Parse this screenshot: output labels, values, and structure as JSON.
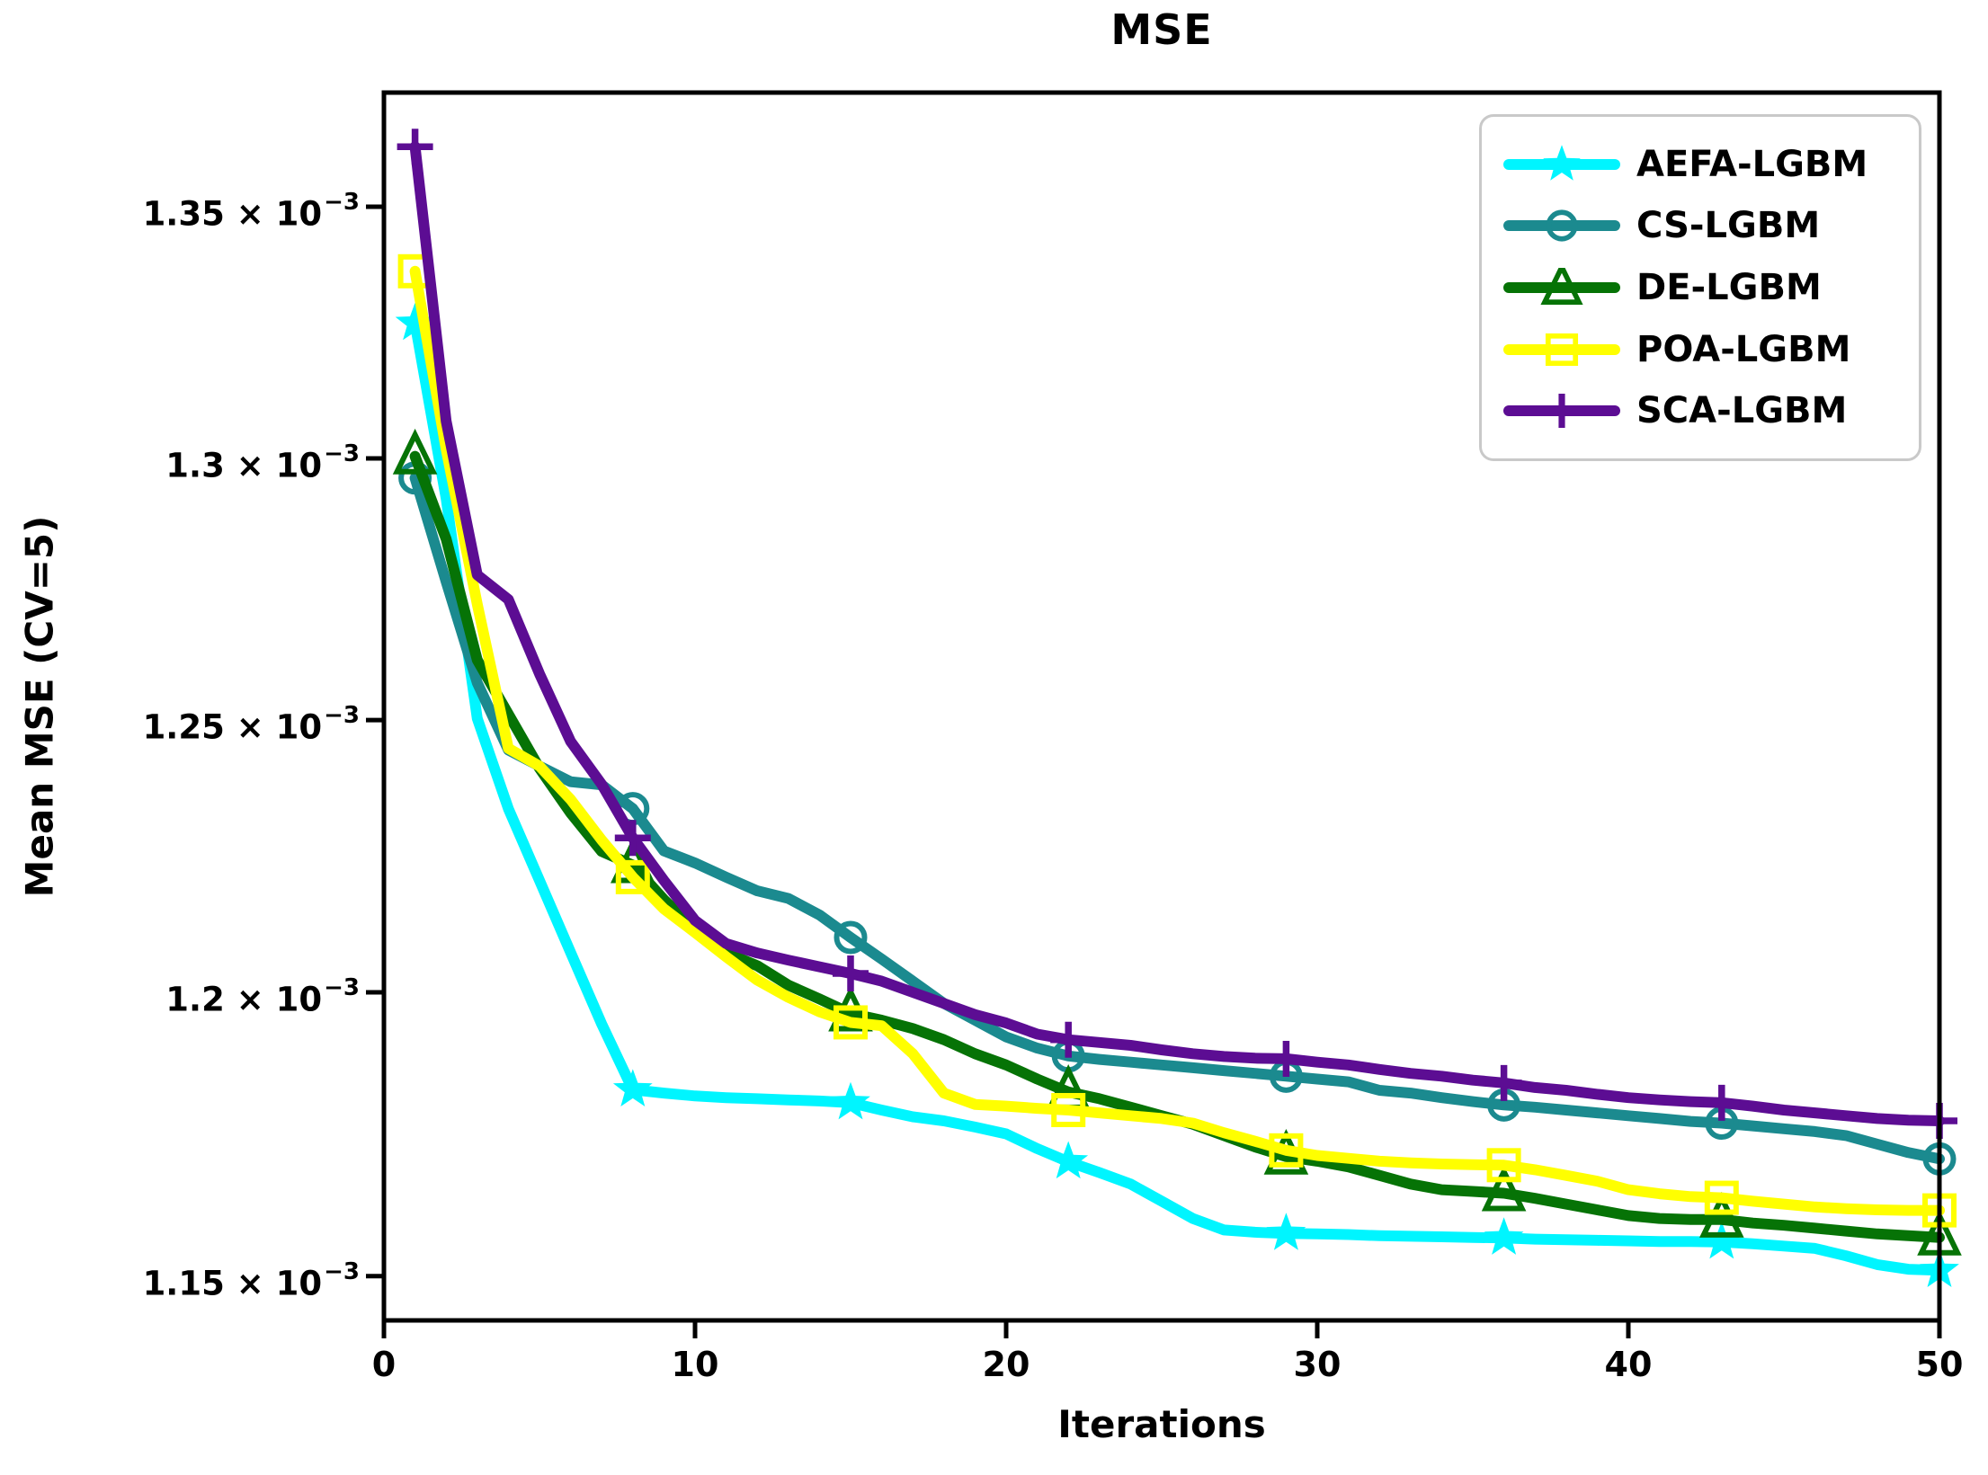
{
  "chart_data": {
    "type": "line",
    "title": "MSE",
    "xlabel": "Iterations",
    "ylabel": "Mean MSE (CV=5)",
    "yscale": "log",
    "y_unit": "×10⁻³",
    "xlim": [
      0,
      50
    ],
    "ylim": [
      1.1424,
      1.3733
    ],
    "x_start": 1,
    "markevery": 7,
    "grid": false,
    "legend_position": "upper right",
    "x_ticks": [
      {
        "label": "0",
        "value": 0
      },
      {
        "label": "10",
        "value": 10
      },
      {
        "label": "20",
        "value": 20
      },
      {
        "label": "30",
        "value": 30
      },
      {
        "label": "40",
        "value": 40
      },
      {
        "label": "50",
        "value": 50
      }
    ],
    "y_ticks": [
      {
        "base": "1.35 × 10",
        "sup": "−3",
        "value": 1.35
      },
      {
        "base": "1.3 × 10",
        "sup": "−3",
        "value": 1.3
      },
      {
        "base": "1.25 × 10",
        "sup": "−3",
        "value": 1.25
      },
      {
        "base": "1.2 × 10",
        "sup": "−3",
        "value": 1.2
      },
      {
        "base": "1.15 × 10",
        "sup": "−3",
        "value": 1.15
      }
    ],
    "series": [
      {
        "name": "AEFA-LGBM",
        "color": "#00f5ff",
        "marker": "star",
        "values": [
          1.3266,
          1.2922,
          1.2503,
          1.2335,
          1.2203,
          1.2072,
          1.1943,
          1.1826,
          1.182,
          1.1815,
          1.1812,
          1.181,
          1.1808,
          1.1806,
          1.1803,
          1.179,
          1.1778,
          1.1771,
          1.176,
          1.1748,
          1.1722,
          1.1699,
          1.168,
          1.166,
          1.163,
          1.16,
          1.158,
          1.1576,
          1.1574,
          1.1573,
          1.1572,
          1.157,
          1.1569,
          1.1568,
          1.1567,
          1.1566,
          1.1564,
          1.1563,
          1.1562,
          1.1561,
          1.156,
          1.156,
          1.1559,
          1.1556,
          1.1552,
          1.1548,
          1.1535,
          1.152,
          1.1512,
          1.151
        ]
      },
      {
        "name": "CS-LGBM",
        "color": "#1b8a8f",
        "marker": "circle",
        "values": [
          1.2962,
          1.2762,
          1.257,
          1.2444,
          1.2414,
          1.2385,
          1.2379,
          1.2335,
          1.2257,
          1.2235,
          1.2209,
          1.2184,
          1.217,
          1.214,
          1.2099,
          1.206,
          1.202,
          1.198,
          1.195,
          1.192,
          1.19,
          1.1886,
          1.188,
          1.1875,
          1.187,
          1.1865,
          1.186,
          1.1855,
          1.185,
          1.1845,
          1.184,
          1.1825,
          1.182,
          1.1812,
          1.1805,
          1.1799,
          1.1795,
          1.179,
          1.1785,
          1.178,
          1.1775,
          1.177,
          1.1767,
          1.1762,
          1.1757,
          1.1752,
          1.1745,
          1.173,
          1.1715,
          1.1704
        ]
      },
      {
        "name": "DE-LGBM",
        "color": "#067306",
        "marker": "triangle",
        "values": [
          1.3004,
          1.2844,
          1.2613,
          1.2511,
          1.241,
          1.2327,
          1.2256,
          1.2231,
          1.2168,
          1.2114,
          1.2071,
          1.2048,
          1.2013,
          1.1988,
          1.1962,
          1.195,
          1.1935,
          1.1915,
          1.189,
          1.187,
          1.1845,
          1.1822,
          1.181,
          1.1795,
          1.178,
          1.1765,
          1.1745,
          1.1725,
          1.1708,
          1.17,
          1.169,
          1.1675,
          1.166,
          1.165,
          1.1647,
          1.1644,
          1.1635,
          1.1625,
          1.1615,
          1.1605,
          1.16,
          1.1598,
          1.1598,
          1.1592,
          1.1588,
          1.1583,
          1.1578,
          1.1573,
          1.157,
          1.1567
        ]
      },
      {
        "name": "POA-LGBM",
        "color": "#ffff00",
        "marker": "square",
        "values": [
          1.337,
          1.3018,
          1.2719,
          1.2447,
          1.2414,
          1.2352,
          1.2277,
          1.2209,
          1.2151,
          1.2108,
          1.2064,
          1.2022,
          1.1991,
          1.1965,
          1.1946,
          1.194,
          1.189,
          1.182,
          1.18,
          1.1797,
          1.1793,
          1.179,
          1.1785,
          1.178,
          1.1775,
          1.1767,
          1.175,
          1.1735,
          1.1719,
          1.171,
          1.1705,
          1.17,
          1.1697,
          1.1695,
          1.1694,
          1.1693,
          1.1685,
          1.1675,
          1.1665,
          1.165,
          1.1643,
          1.1638,
          1.1636,
          1.163,
          1.1625,
          1.162,
          1.1617,
          1.1615,
          1.1614,
          1.1614
        ]
      },
      {
        "name": "SCA-LGBM",
        "color": "#5c0d93",
        "marker": "plus",
        "values": [
          1.3622,
          1.3073,
          1.2775,
          1.2728,
          1.2587,
          1.246,
          1.238,
          1.2281,
          1.2203,
          1.213,
          1.2088,
          1.2071,
          1.2058,
          1.2046,
          1.2034,
          1.202,
          1.2,
          1.198,
          1.196,
          1.1945,
          1.1925,
          1.1915,
          1.191,
          1.1905,
          1.1897,
          1.189,
          1.1885,
          1.1882,
          1.1881,
          1.1875,
          1.187,
          1.1862,
          1.1855,
          1.185,
          1.1843,
          1.1838,
          1.183,
          1.1825,
          1.1818,
          1.1812,
          1.1808,
          1.1805,
          1.1803,
          1.1797,
          1.179,
          1.1785,
          1.178,
          1.1775,
          1.1772,
          1.1771
        ]
      }
    ]
  }
}
